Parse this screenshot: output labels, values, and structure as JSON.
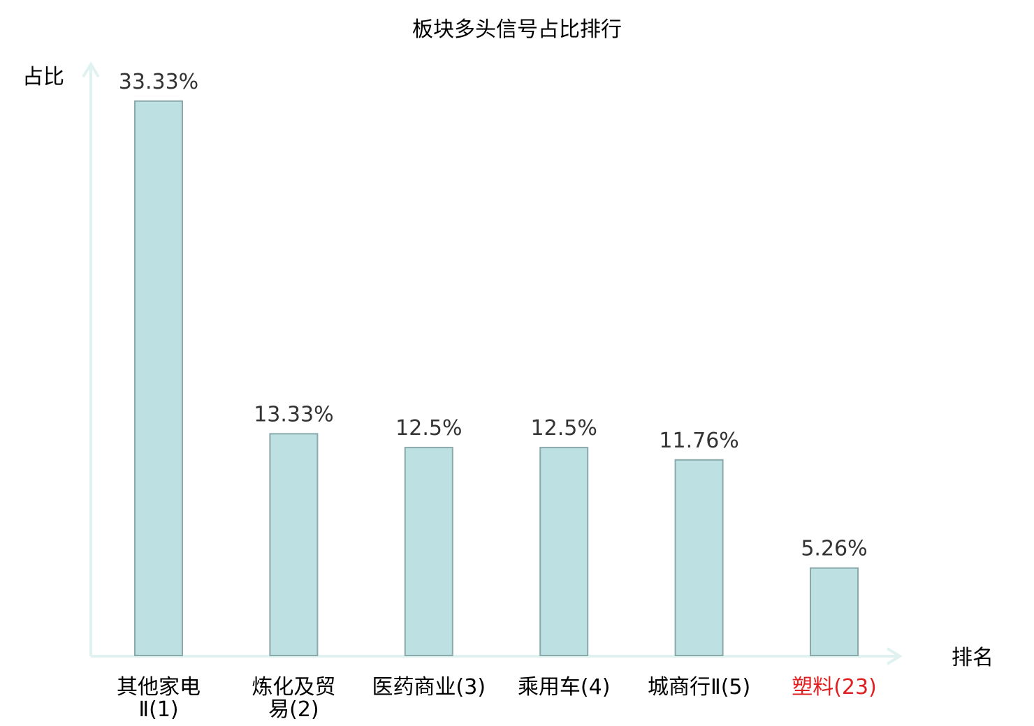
{
  "chart_data": {
    "type": "bar",
    "title": "板块多头信号占比排行",
    "ylabel": "占比",
    "xlabel": "排名",
    "categories": [
      [
        "其他家电",
        "Ⅱ(1)"
      ],
      [
        "炼化及贸",
        "易(2)"
      ],
      [
        "医药商业(3)"
      ],
      [
        "乘用车(4)"
      ],
      [
        "城商行Ⅱ(5)"
      ],
      [
        "塑料(23)"
      ]
    ],
    "values": [
      33.33,
      13.33,
      12.5,
      12.5,
      11.76,
      5.26
    ],
    "value_labels": [
      "33.33%",
      "13.33%",
      "12.5%",
      "12.5%",
      "11.76%",
      "5.26%"
    ],
    "highlight_index": 5,
    "ylim": [
      0,
      35
    ],
    "grid": false,
    "legend": "none"
  },
  "colors": {
    "bar_fill": "#bde0e3",
    "bar_stroke": "#8aa9ab",
    "axis": "#e0f2ef",
    "value_text": "#333333",
    "label_text": "#000000",
    "highlight_text": "#e02020"
  }
}
